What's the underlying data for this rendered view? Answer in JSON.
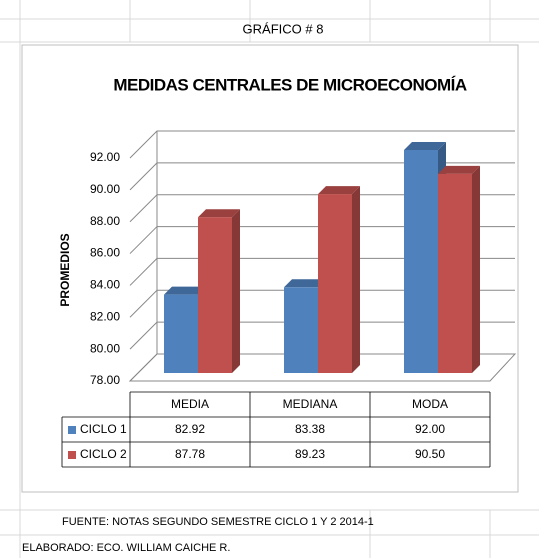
{
  "header": "GRÁFICO # 8",
  "chart_data": {
    "type": "bar3d",
    "title": "MEDIDAS CENTRALES DE MICROECONOMÍA",
    "y_label": "PROMEDIOS",
    "categories": [
      "MEDIA",
      "MEDIANA",
      "MODA"
    ],
    "series": [
      {
        "name": "CICLO 1",
        "color": "#4f81bd",
        "values": [
          82.92,
          83.38,
          92
        ],
        "value_labels": [
          "82.92",
          "83.38",
          "92.00"
        ]
      },
      {
        "name": "CICLO 2",
        "color": "#c0504d",
        "values": [
          87.78,
          89.23,
          90.5
        ],
        "value_labels": [
          "87.78",
          "89.23",
          "90.50"
        ]
      }
    ],
    "ylim": [
      78,
      92
    ],
    "yticks": [
      {
        "value": 78,
        "label": "78.00"
      },
      {
        "value": 80,
        "label": "80.00"
      },
      {
        "value": 82,
        "label": "82.00"
      },
      {
        "value": 84,
        "label": "84.00"
      },
      {
        "value": 86,
        "label": "86.00"
      },
      {
        "value": 88,
        "label": "88.00"
      },
      {
        "value": 90,
        "label": "90.00"
      },
      {
        "value": 92,
        "label": "92.00"
      }
    ],
    "grid": true
  },
  "footer": [
    "FUENTE: NOTAS SEGUNDO SEMESTRE  CICLO 1 Y 2  2014-1",
    "ELABORADO: ECO. WILLIAM CAICHE R."
  ]
}
